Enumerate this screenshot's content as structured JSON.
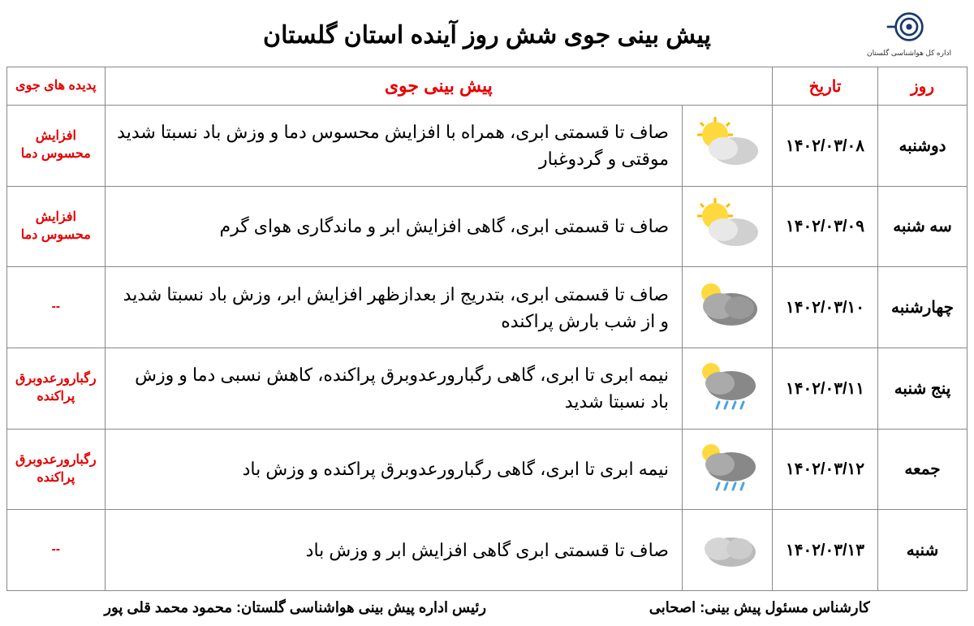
{
  "title": "پیش بینی جوی شش روز آینده استان گلستان",
  "logo_caption": "اداره کل هواشناسی گلستان",
  "headers": {
    "day": "روز",
    "date": "تاریخ",
    "forecast": "پیش بینی جوی",
    "phenomena": "پدیده های جوی"
  },
  "rows": [
    {
      "day": "دوشنبه",
      "date": "۱۴۰۲/۰۳/۰۸",
      "forecast": "صاف تا قسمتی ابری، همراه با افزایش محسوس دما و وزش باد نسبتا شدید موقتی و گردوغبار",
      "phenom": "افزایش محسوس دما",
      "icon": "sun-cloud"
    },
    {
      "day": "سه شنبه",
      "date": "۱۴۰۲/۰۳/۰۹",
      "forecast": "صاف تا قسمتی ابری، گاهی افزایش ابر و ماندگاری هوای گرم",
      "phenom": "افزایش محسوس دما",
      "icon": "sun-cloud"
    },
    {
      "day": "چهارشنبه",
      "date": "۱۴۰۲/۰۳/۱۰",
      "forecast": "صاف تا قسمتی ابری، بتدریج از بعدازظهر افزایش ابر، وزش باد نسبتا شدید و از شب بارش پراکنده",
      "phenom": "--",
      "icon": "heavy-cloud"
    },
    {
      "day": "پنج شنبه",
      "date": "۱۴۰۲/۰۳/۱۱",
      "forecast": "نیمه ابری تا ابری، گاهی رگبارورعدوبرق پراکنده، کاهش نسبی دما و وزش باد نسبتا شدید",
      "phenom": "رگبارورعدوبرق پراکنده",
      "icon": "rain-cloud"
    },
    {
      "day": "جمعه",
      "date": "۱۴۰۲/۰۳/۱۲",
      "forecast": "نیمه ابری تا ابری، گاهی رگبارورعدوبرق پراکنده و وزش باد",
      "phenom": "رگبارورعدوبرق پراکنده",
      "icon": "rain-cloud"
    },
    {
      "day": "شنبه",
      "date": "۱۴۰۲/۰۳/۱۳",
      "forecast": "صاف تا قسمتی ابری گاهی افزایش ابر و وزش باد",
      "phenom": "--",
      "icon": "cloud"
    }
  ],
  "footer": {
    "expert_label": "کارشناس مسئول پیش بینی:",
    "expert_name": "اصحابی",
    "chief_label": "رئیس اداره پیش بینی هواشناسی گلستان:",
    "chief_name": "محمود محمد قلی پور"
  },
  "colors": {
    "header_text": "#e60000",
    "border": "#888888",
    "text": "#000000",
    "bg": "#ffffff"
  }
}
